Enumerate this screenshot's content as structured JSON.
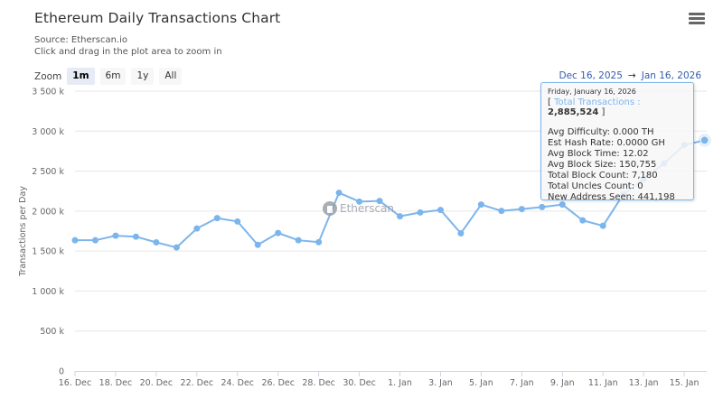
{
  "header": {
    "title": "Ethereum Daily Transactions Chart",
    "source": "Source: Etherscan.io",
    "hint": "Click and drag in the plot area to zoom in",
    "menu_icon": "hamburger-menu-icon"
  },
  "zoom": {
    "label": "Zoom",
    "buttons": [
      {
        "label": "1m",
        "active": true
      },
      {
        "label": "6m",
        "active": false
      },
      {
        "label": "1y",
        "active": false
      },
      {
        "label": "All",
        "active": false
      }
    ]
  },
  "range": {
    "from": "Dec 16, 2025",
    "arrow": "→",
    "to": "Jan 16, 2026"
  },
  "watermark": "Etherscan",
  "tooltip": {
    "date": "Friday, January 16, 2026",
    "open_bracket": "[",
    "total_label": "Total Transactions",
    "sep": ":",
    "total_value": "2,885,524",
    "close_bracket": "]",
    "lines": [
      "Avg Difficulty: 0.000 TH",
      "Est Hash Rate: 0.0000 GH",
      "Avg Block Time: 12.02",
      "Avg Block Size: 150,755",
      "Total Block Count: 7,180",
      "Total Uncles Count: 0",
      "New Address Seen: 441,198"
    ]
  },
  "colors": {
    "series": "#7cb5ec",
    "grid": "#e6e6e6",
    "range_text": "#335cad"
  },
  "chart_data": {
    "type": "line",
    "title": "Ethereum Daily Transactions Chart",
    "subtitle": "Source: Etherscan.io",
    "xlabel": "",
    "ylabel": "Transactions per Day",
    "ylim": [
      0,
      3500000
    ],
    "yticks": [
      0,
      500000,
      1000000,
      1500000,
      2000000,
      2500000,
      3000000,
      3500000
    ],
    "ytick_labels": [
      "0",
      "500 k",
      "1 000 k",
      "1 500 k",
      "2 000 k",
      "2 500 k",
      "3 000 k",
      "3 500 k"
    ],
    "xtick_labels": [
      "16. Dec",
      "18. Dec",
      "20. Dec",
      "22. Dec",
      "24. Dec",
      "26. Dec",
      "28. Dec",
      "30. Dec",
      "1. Jan",
      "3. Jan",
      "5. Jan",
      "7. Jan",
      "9. Jan",
      "11. Jan",
      "13. Jan",
      "15. Jan"
    ],
    "grid": true,
    "legend": false,
    "x": [
      "2025-12-16",
      "2025-12-17",
      "2025-12-18",
      "2025-12-19",
      "2025-12-20",
      "2025-12-21",
      "2025-12-22",
      "2025-12-23",
      "2025-12-24",
      "2025-12-25",
      "2025-12-26",
      "2025-12-27",
      "2025-12-28",
      "2025-12-29",
      "2025-12-30",
      "2025-12-31",
      "2026-01-01",
      "2026-01-02",
      "2026-01-03",
      "2026-01-04",
      "2026-01-05",
      "2026-01-06",
      "2026-01-07",
      "2026-01-08",
      "2026-01-09",
      "2026-01-10",
      "2026-01-11",
      "2026-01-12",
      "2026-01-13",
      "2026-01-14",
      "2026-01-15",
      "2026-01-16"
    ],
    "series": [
      {
        "name": "Total Transactions",
        "values": [
          1635000,
          1635000,
          1692000,
          1680000,
          1609000,
          1545000,
          1782000,
          1912000,
          1870000,
          1578000,
          1726000,
          1635000,
          1612000,
          2229000,
          2119000,
          2127000,
          1935000,
          1983000,
          2014000,
          1722000,
          2082000,
          2002000,
          2025000,
          2051000,
          2082000,
          1884000,
          1816000,
          2210000,
          2400000,
          2595000,
          2827000,
          2885524
        ]
      }
    ]
  }
}
